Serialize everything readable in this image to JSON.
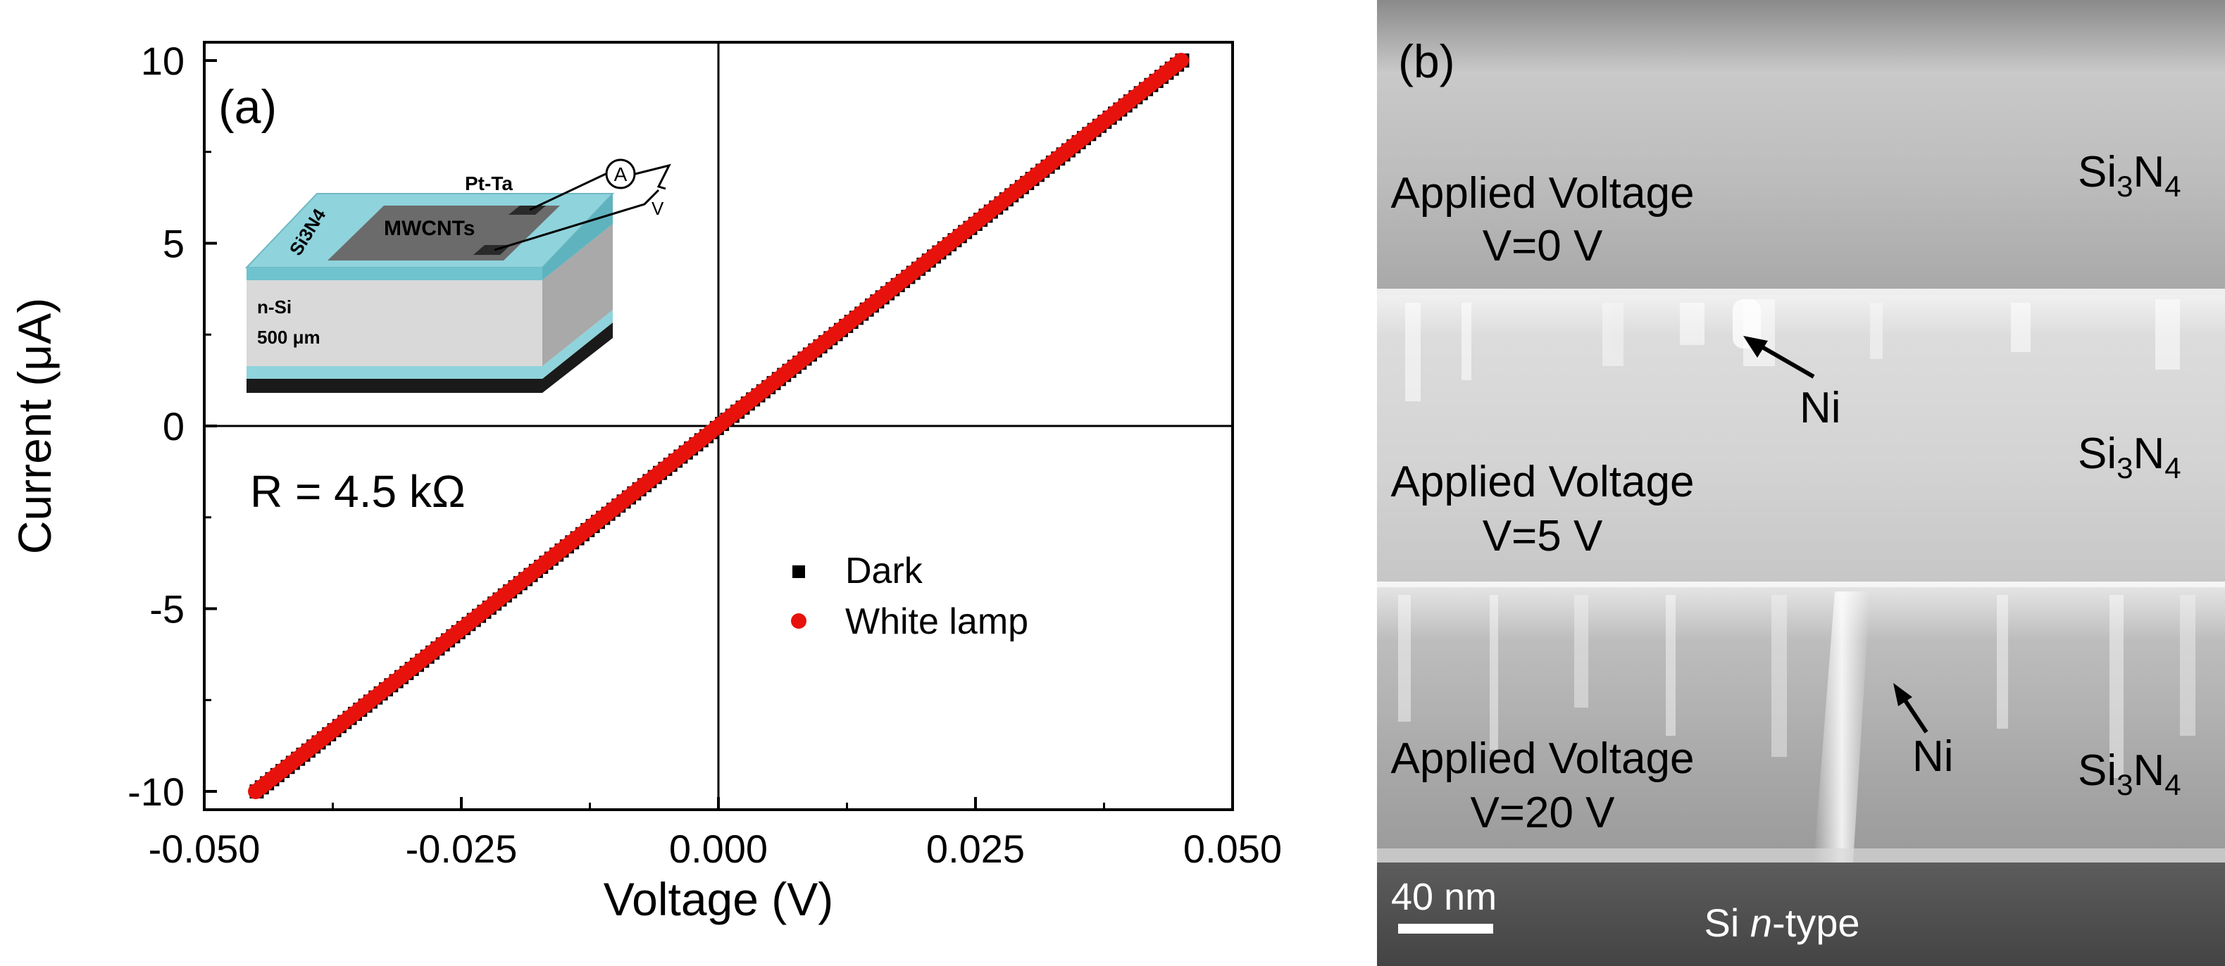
{
  "chart_data": [
    {
      "type": "scatter",
      "panel_label": "(a)",
      "xlabel": "Voltage (V)",
      "ylabel": "Current (μA)",
      "xlim": [
        -0.05,
        0.05
      ],
      "ylim": [
        -10.5,
        10.5
      ],
      "x_ticks": [
        -0.05,
        -0.025,
        0.0,
        0.025,
        0.05
      ],
      "x_tick_labels": [
        "-0.050",
        "-0.025",
        "0.000",
        "0.025",
        "0.050"
      ],
      "y_ticks": [
        -10,
        -5,
        0,
        5,
        10
      ],
      "y_tick_labels": [
        "-10",
        "-5",
        "0",
        "5",
        "10"
      ],
      "annotation": "R = 4.5 kΩ",
      "legend": {
        "position": "lower-right"
      },
      "series": [
        {
          "name": "Dark",
          "color": "#000000",
          "marker": "square",
          "x_range": [
            -0.0449,
            0.0451
          ],
          "y_range": [
            -10.0,
            10.0
          ],
          "n_points": 180
        },
        {
          "name": "White lamp",
          "color": "#e8120c",
          "marker": "circle",
          "x_range": [
            -0.045,
            0.045
          ],
          "y_range": [
            -10.0,
            10.0
          ],
          "n_points": 180
        }
      ],
      "inset": {
        "labels": [
          "Pt-Ta",
          "MWCNTs",
          "Si3N4",
          "n-Si",
          "500 μm",
          "A",
          "V"
        ],
        "colors": {
          "nitride": "#8fd3dc",
          "silicon": "#d9d9d9",
          "cnt": "#6b6b6b",
          "back": "#1a1a1a"
        }
      }
    },
    {
      "type": "image",
      "panel_label": "(b)",
      "layers": [
        {
          "label": "Applied Voltage",
          "voltage": "V=0 V",
          "material": "Si",
          "sub1": "3",
          "mid": "N",
          "sub2": "4",
          "arrow_label": ""
        },
        {
          "label": "Applied Voltage",
          "voltage": "V=5 V",
          "material": "Si",
          "sub1": "3",
          "mid": "N",
          "sub2": "4",
          "arrow_label": "Ni"
        },
        {
          "label": "Applied Voltage",
          "voltage": "V=20 V",
          "material": "Si",
          "sub1": "3",
          "mid": "N",
          "sub2": "4",
          "arrow_label": "Ni"
        }
      ],
      "scale_bar": "40 nm",
      "substrate": {
        "prefix": "Si ",
        "italic": "n",
        "suffix": "-type"
      }
    }
  ]
}
